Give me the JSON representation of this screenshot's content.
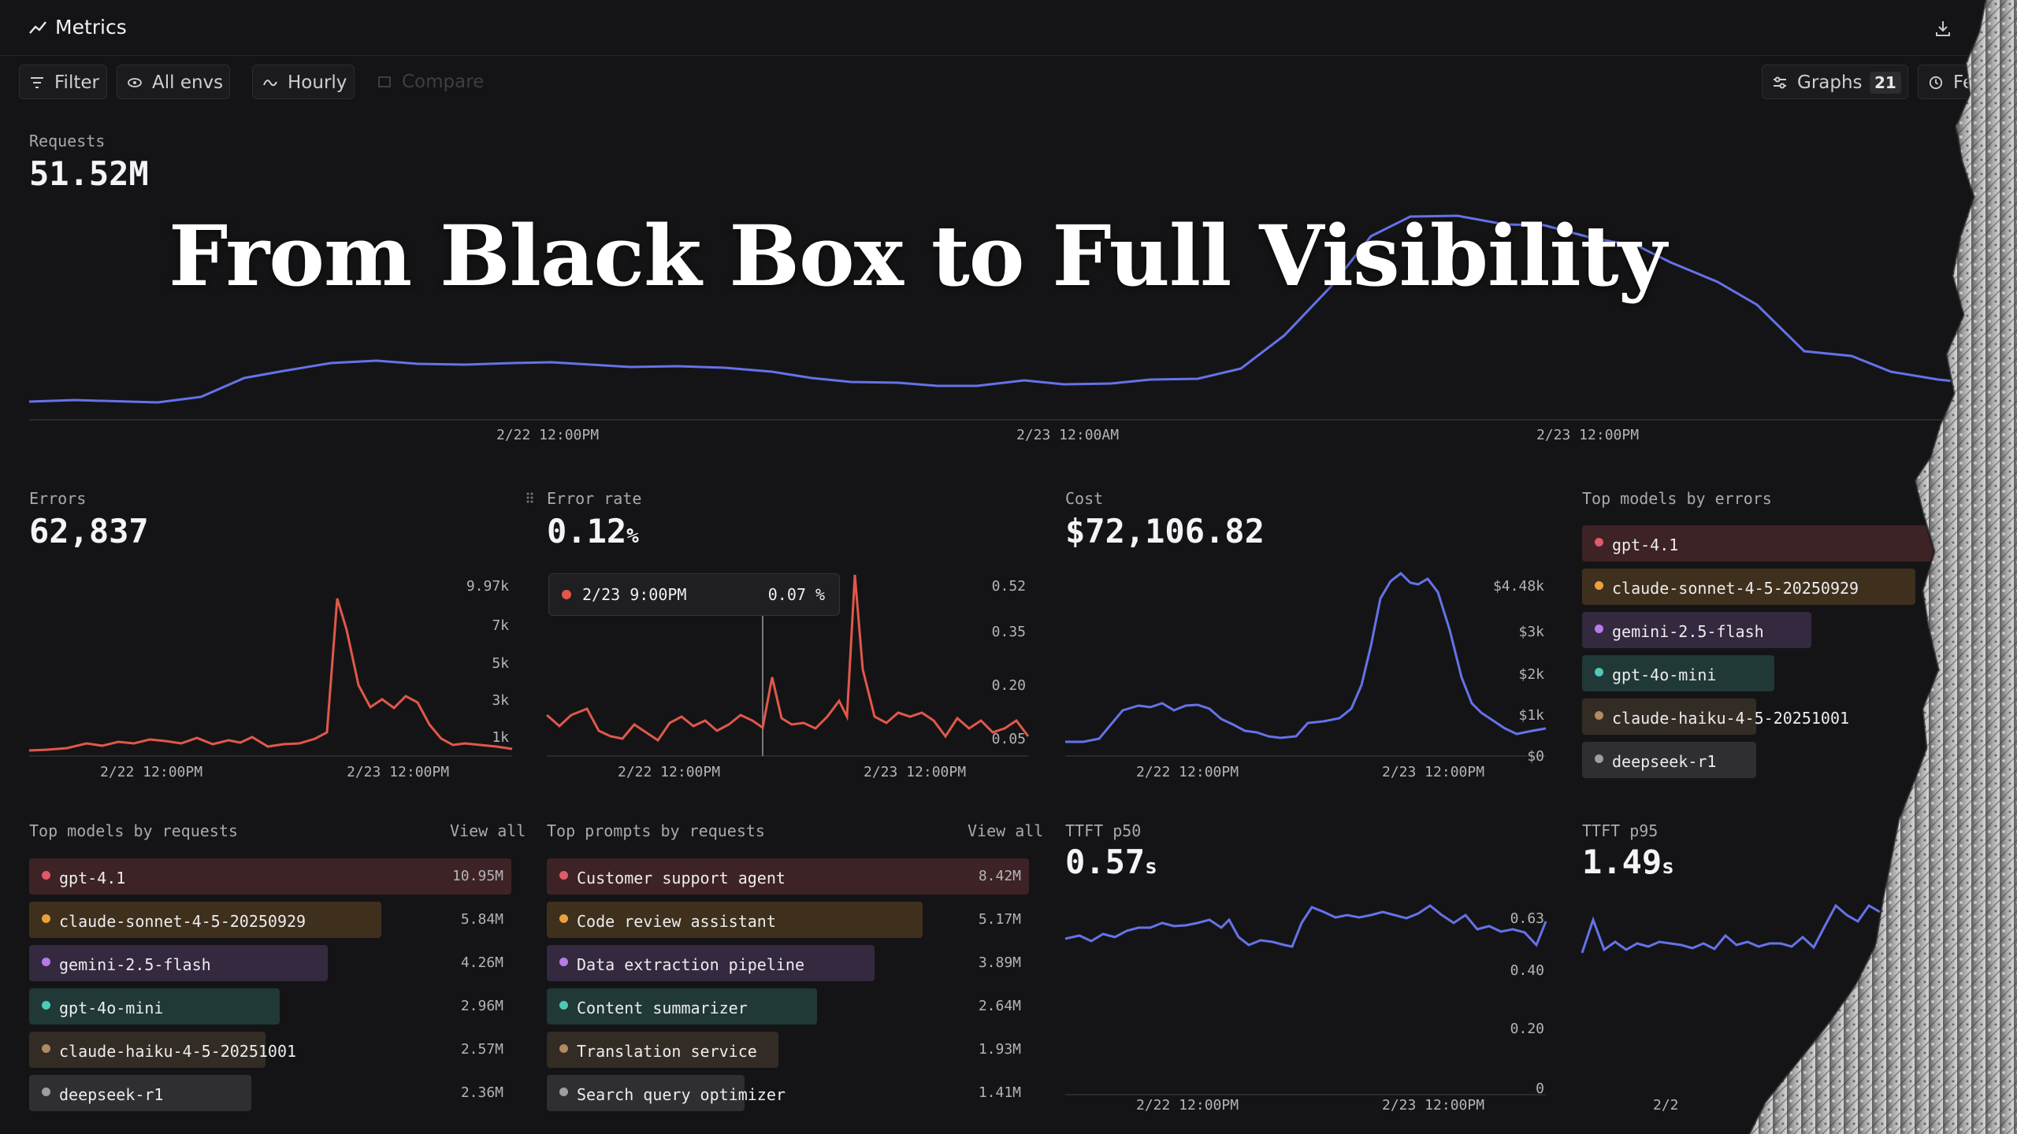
{
  "header": {
    "title": "Metrics"
  },
  "toolbar": {
    "filter": "Filter",
    "envs": "All envs",
    "interval": "Hourly",
    "compare": "Compare",
    "graphs": "Graphs",
    "graphs_count": "21",
    "right_partial": "Fe"
  },
  "headline": "From Black Box to Full Visibility",
  "requests": {
    "label": "Requests",
    "value": "51.52M",
    "x_ticks": [
      "2/22 12:00PM",
      "2/23 12:00AM",
      "2/23 12:00PM"
    ]
  },
  "errors": {
    "label": "Errors",
    "value": "62,837",
    "y_ticks": [
      "9.97k",
      "7k",
      "5k",
      "3k",
      "1k"
    ],
    "x_ticks": [
      "2/22 12:00PM",
      "2/23 12:00PM"
    ]
  },
  "error_rate": {
    "label": "Error rate",
    "value": "0.12",
    "unit": "%",
    "y_ticks": [
      "0.52",
      "0.35",
      "0.20",
      "0.05"
    ],
    "x_ticks": [
      "2/22 12:00PM",
      "2/23 12:00PM"
    ],
    "tooltip": {
      "time": "2/23 9:00PM",
      "value": "0.07 %"
    }
  },
  "cost": {
    "label": "Cost",
    "value": "$72,106.82",
    "y_ticks": [
      "$4.48k",
      "$3k",
      "$2k",
      "$1k",
      "$0"
    ],
    "x_ticks": [
      "2/22 12:00PM",
      "2/23 12:00PM"
    ]
  },
  "top_models_errors": {
    "label": "Top models by errors",
    "items": [
      {
        "name": "gpt-4.1",
        "color": "#e05a6a",
        "fraction": 1.0
      },
      {
        "name": "claude-sonnet-4-5-20250929",
        "color": "#e9a23b",
        "fraction": 0.9
      },
      {
        "name": "gemini-2.5-flash",
        "color": "#b57be8",
        "fraction": 0.62
      },
      {
        "name": "gpt-4o-mini",
        "color": "#4ec9b8",
        "fraction": 0.52
      },
      {
        "name": "claude-haiku-4-5-20251001",
        "color": "#b08a63",
        "fraction": 0.47
      },
      {
        "name": "deepseek-r1",
        "color": "#9d9da3",
        "fraction": 0.47
      }
    ]
  },
  "top_models_requests": {
    "label": "Top models by requests",
    "view_all": "View all",
    "items": [
      {
        "name": "gpt-4.1",
        "value": "10.95M",
        "color": "#e05a6a",
        "fraction": 1.0
      },
      {
        "name": "claude-sonnet-4-5-20250929",
        "value": "5.84M",
        "color": "#e9a23b",
        "fraction": 0.73
      },
      {
        "name": "gemini-2.5-flash",
        "value": "4.26M",
        "color": "#b57be8",
        "fraction": 0.62
      },
      {
        "name": "gpt-4o-mini",
        "value": "2.96M",
        "color": "#4ec9b8",
        "fraction": 0.52
      },
      {
        "name": "claude-haiku-4-5-20251001",
        "value": "2.57M",
        "color": "#b08a63",
        "fraction": 0.49
      },
      {
        "name": "deepseek-r1",
        "value": "2.36M",
        "color": "#9d9da3",
        "fraction": 0.46
      }
    ]
  },
  "top_prompts_requests": {
    "label": "Top prompts by requests",
    "view_all": "View all",
    "items": [
      {
        "name": "Customer support agent",
        "value": "8.42M",
        "color": "#e05a6a",
        "fraction": 1.0
      },
      {
        "name": "Code review assistant",
        "value": "5.17M",
        "color": "#e9a23b",
        "fraction": 0.78
      },
      {
        "name": "Data extraction pipeline",
        "value": "3.89M",
        "color": "#b57be8",
        "fraction": 0.68
      },
      {
        "name": "Content summarizer",
        "value": "2.64M",
        "color": "#4ec9b8",
        "fraction": 0.56
      },
      {
        "name": "Translation service",
        "value": "1.93M",
        "color": "#b08a63",
        "fraction": 0.48
      },
      {
        "name": "Search query optimizer",
        "value": "1.41M",
        "color": "#9d9da3",
        "fraction": 0.41
      }
    ]
  },
  "ttft_p50": {
    "label": "TTFT p50",
    "value": "0.57",
    "unit": "s",
    "y_ticks": [
      "0.63",
      "0.40",
      "0.20",
      "0"
    ],
    "x_ticks": [
      "2/22 12:00PM",
      "2/23 12:00PM"
    ]
  },
  "ttft_p95": {
    "label": "TTFT p95",
    "value": "1.49",
    "unit": "s",
    "x_ticks": [
      "2/2"
    ]
  },
  "colors": {
    "background": "#141416",
    "blue_series": "#6572e8",
    "red_series": "#e0584b"
  }
}
